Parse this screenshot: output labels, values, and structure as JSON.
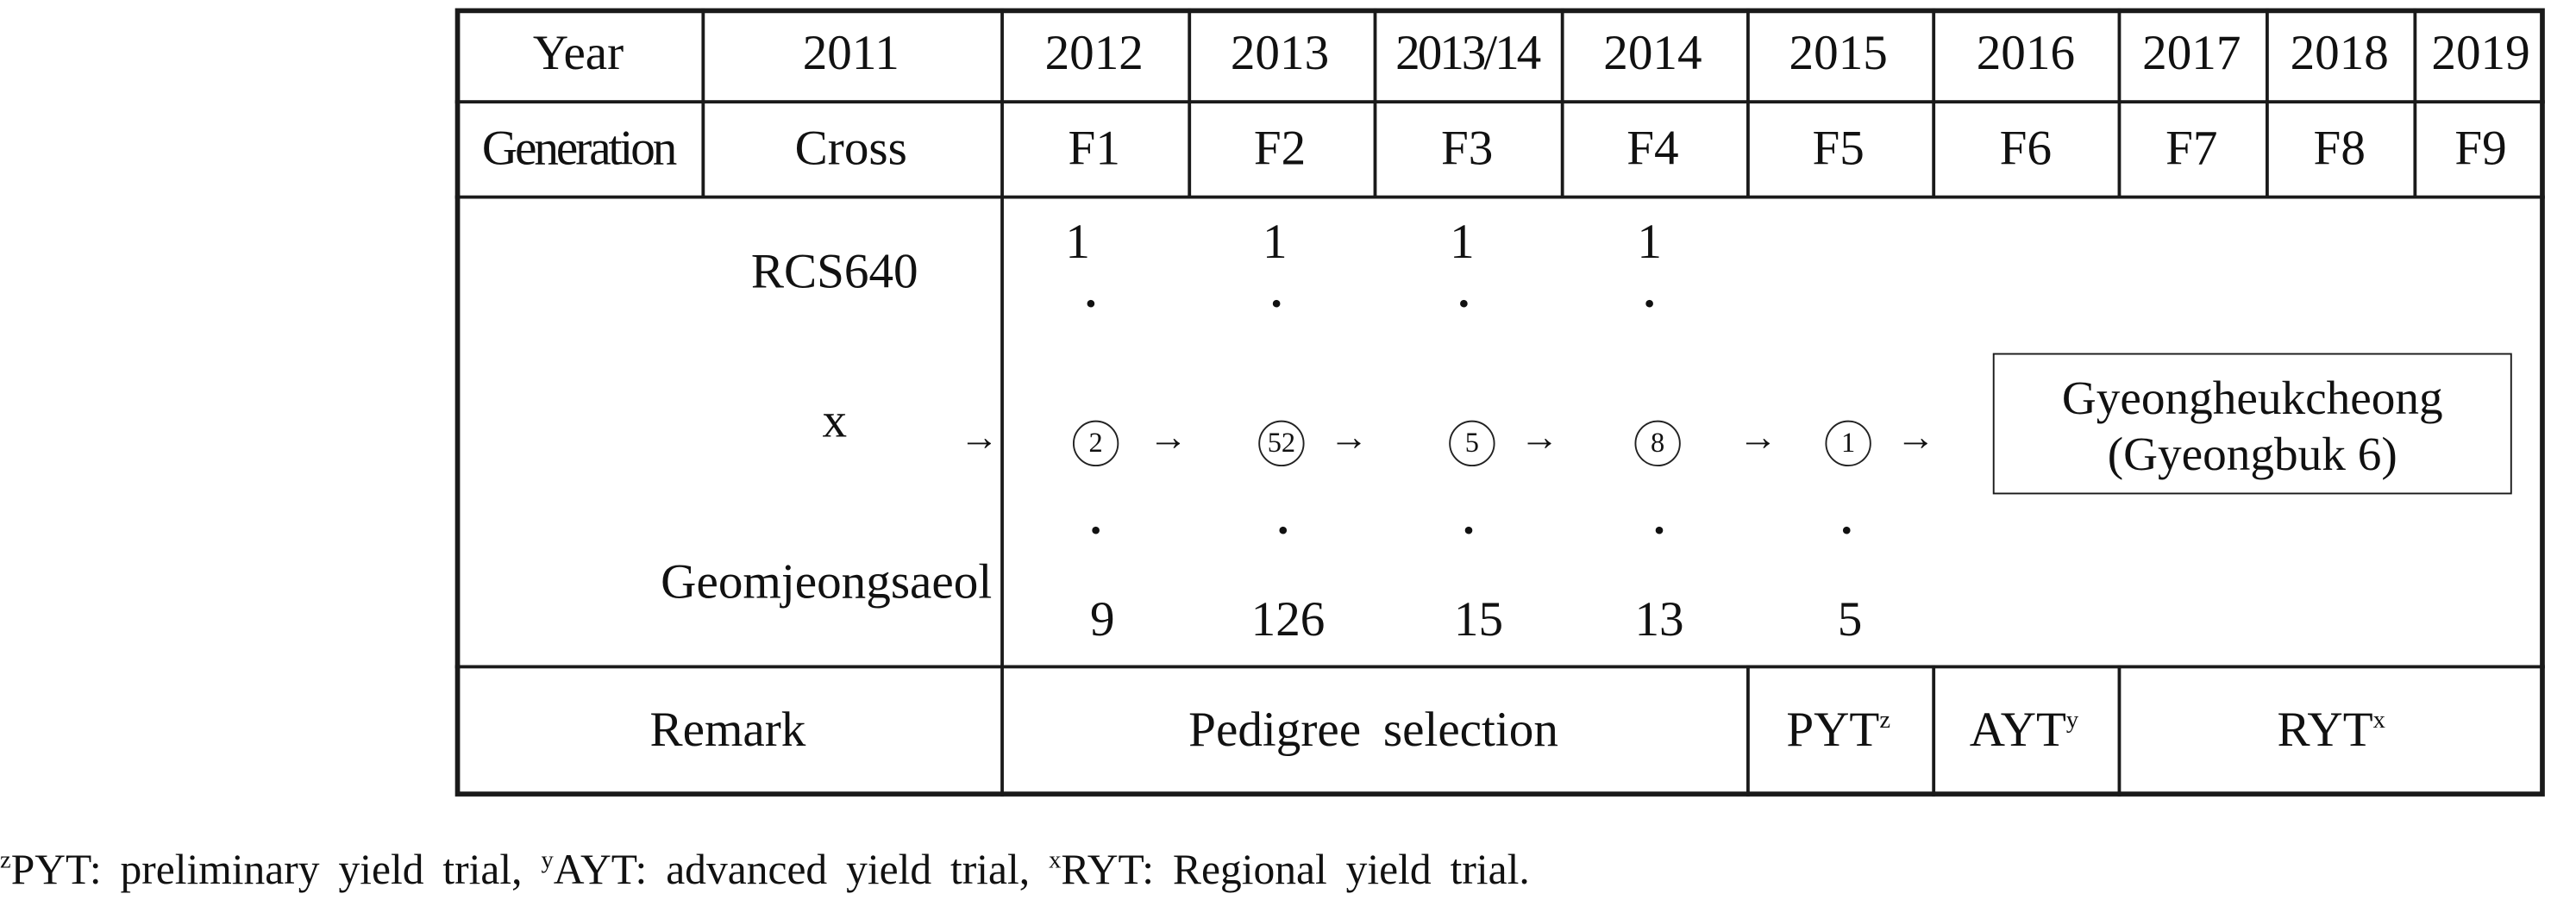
{
  "table": {
    "year_label": "Year",
    "generation_label": "Generation",
    "years": [
      "2011",
      "2012",
      "2013",
      "2013/14",
      "2014",
      "2015",
      "2016",
      "2017",
      "2018",
      "2019"
    ],
    "generations": [
      "Cross",
      "F1",
      "F2",
      "F3",
      "F4",
      "F5",
      "F6",
      "F7",
      "F8",
      "F9"
    ]
  },
  "diagram": {
    "parent_female": "RCS640",
    "cross_symbol": "x",
    "parent_male": "Geomjeongsaeol",
    "arrow": "→",
    "dot": "·",
    "top_counts": [
      "1",
      "1",
      "1",
      "1"
    ],
    "selected_counts": [
      "2",
      "52",
      "5",
      "8",
      "1"
    ],
    "bottom_counts": [
      "9",
      "126",
      "15",
      "13",
      "5"
    ],
    "result_name": "Gyeongheukcheong",
    "result_alias": "(Gyeongbuk  6)"
  },
  "remark": {
    "label": "Remark",
    "pedigree": "Pedigree  selection",
    "pyt": "PYT",
    "pyt_mark": "z",
    "ayt": "AYT",
    "ayt_mark": "y",
    "ryt": "RYT",
    "ryt_mark": "x"
  },
  "footnote": {
    "z_mark": "z",
    "z_text": "PYT:  preliminary  yield  trial,",
    "y_mark": "y",
    "y_text": "AYT:  advanced  yield  trial,",
    "x_mark": "x",
    "x_text": "RYT:  Regional  yield  trial."
  }
}
